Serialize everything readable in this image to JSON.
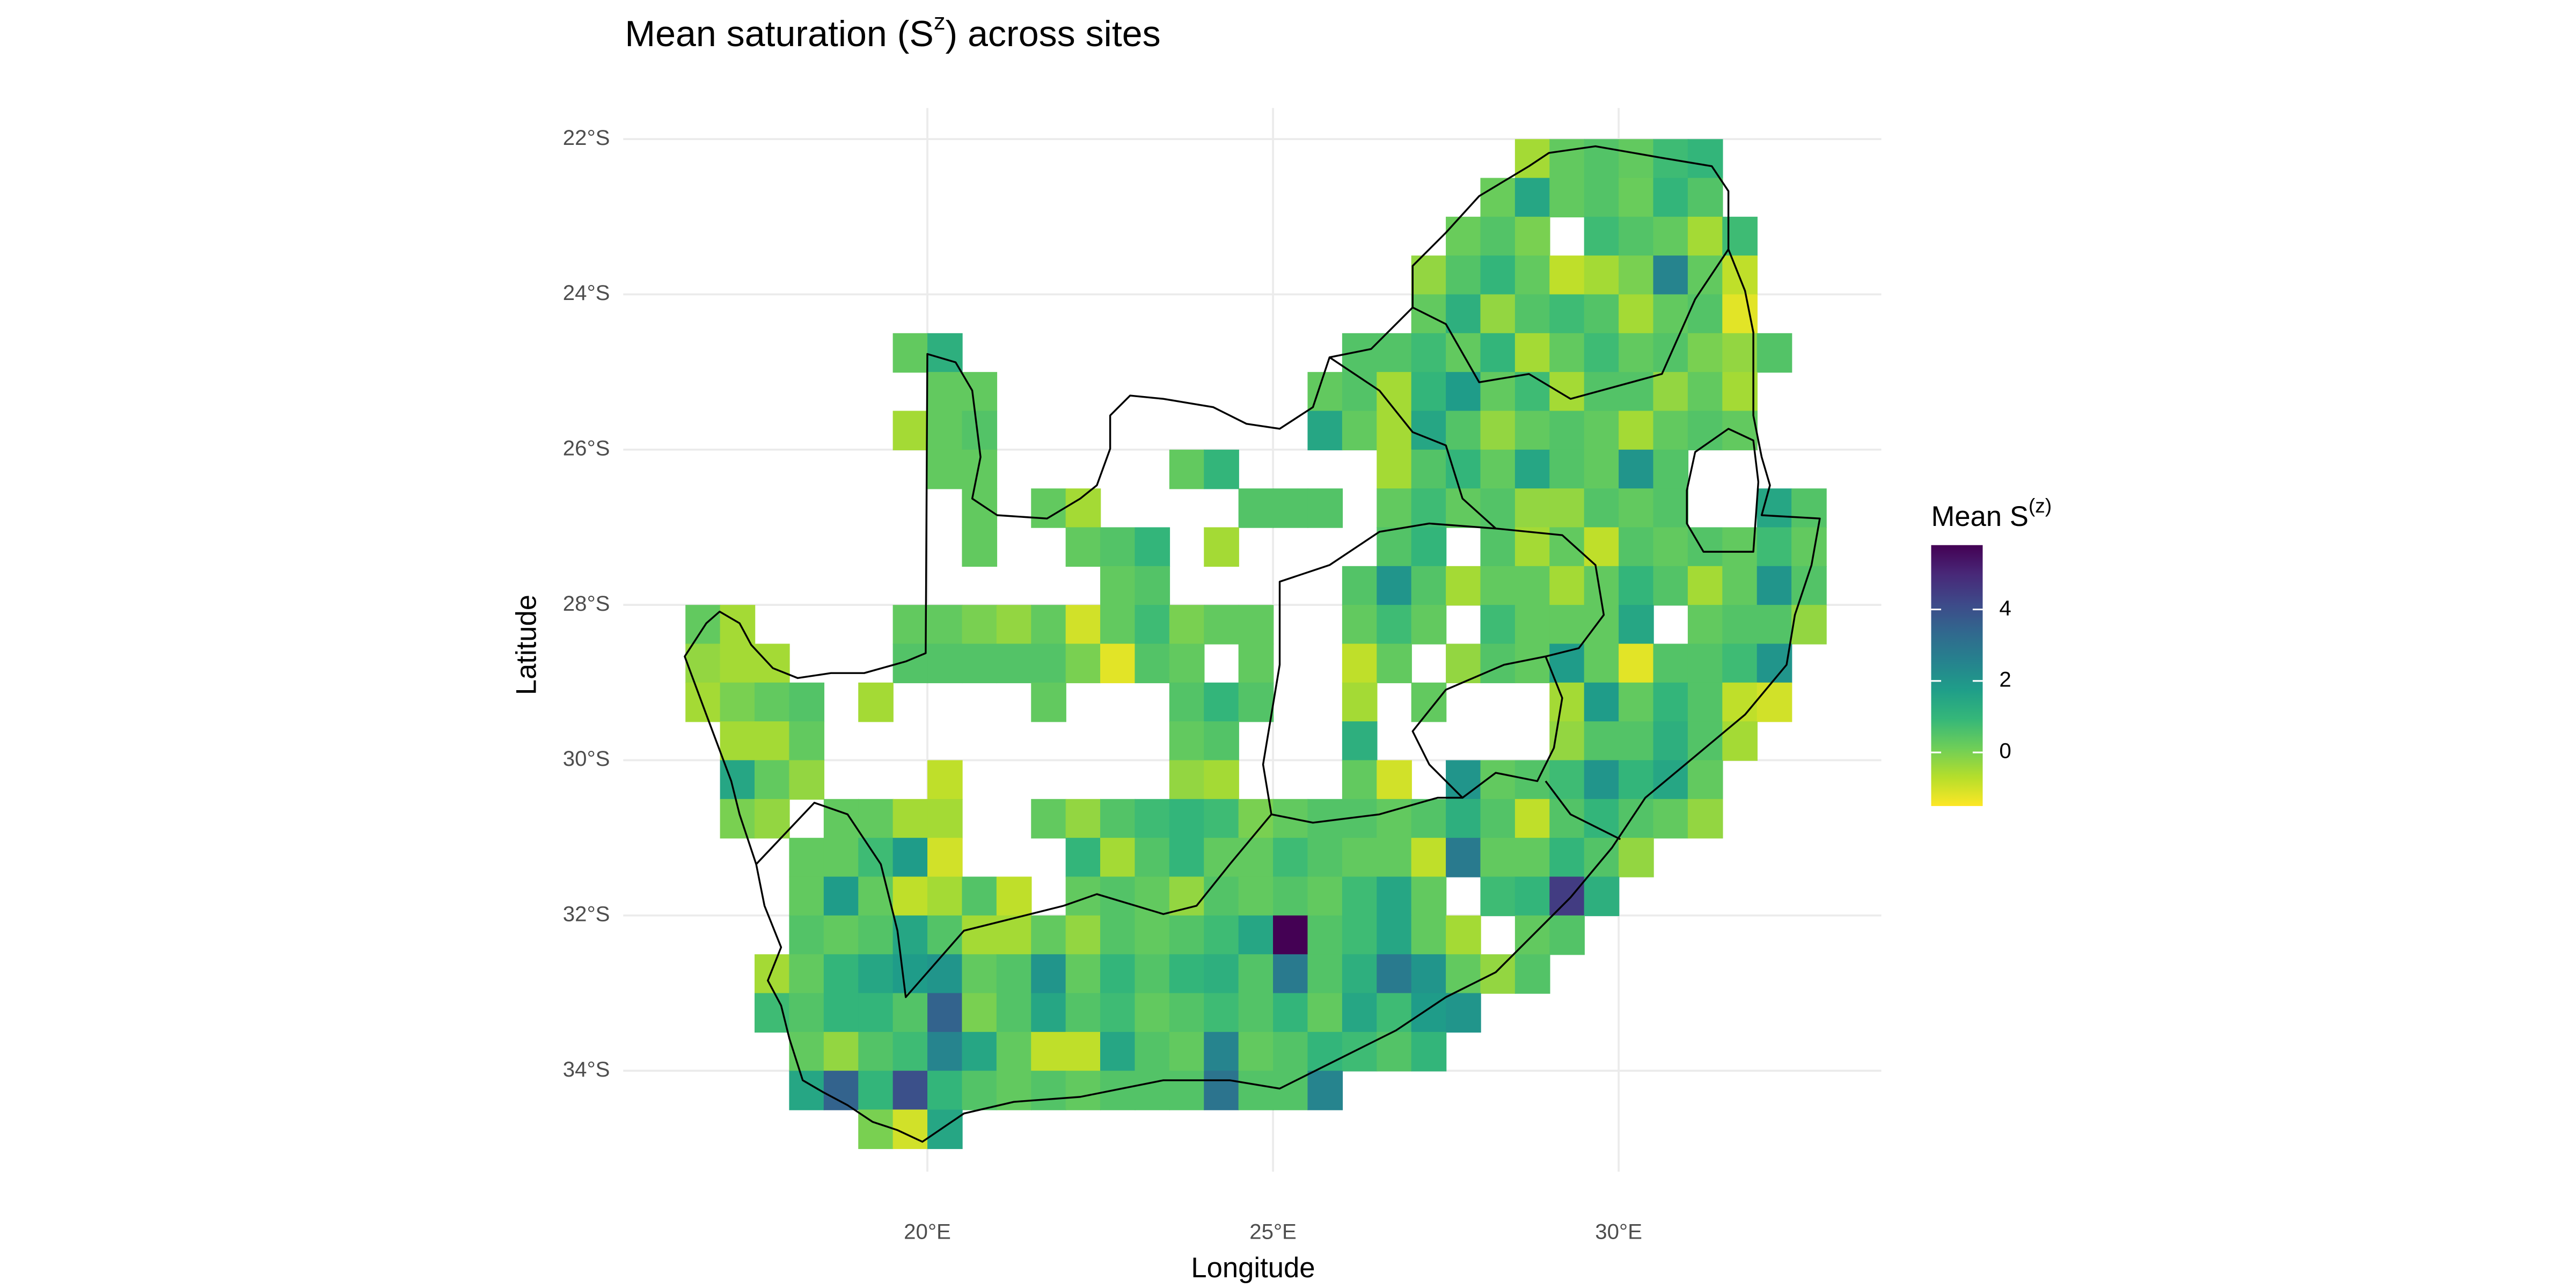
{
  "chart_data": {
    "type": "heatmap",
    "title": [
      "Mean saturation (S",
      "z",
      ") across sites"
    ],
    "x_label": "Longitude",
    "y_label": "Latitude",
    "xlim": [
      15.6,
      33.8
    ],
    "ylim": [
      -35.3,
      -21.6
    ],
    "xticks": [
      {
        "value": 20,
        "label": "20°E"
      },
      {
        "value": 25,
        "label": "25°E"
      },
      {
        "value": 30,
        "label": "30°E"
      }
    ],
    "yticks": [
      {
        "value": -22,
        "label": "22°S"
      },
      {
        "value": -24,
        "label": "24°S"
      },
      {
        "value": -26,
        "label": "26°S"
      },
      {
        "value": -28,
        "label": "28°S"
      },
      {
        "value": -30,
        "label": "30°S"
      },
      {
        "value": -32,
        "label": "32°S"
      },
      {
        "value": -34,
        "label": "34°S"
      }
    ],
    "grid": true,
    "x": [
      16.75,
      17.25,
      17.75,
      18.25,
      18.75,
      19.25,
      19.75,
      20.25,
      20.75,
      21.25,
      21.75,
      22.25,
      22.75,
      23.25,
      23.75,
      24.25,
      24.75,
      25.25,
      25.75,
      26.25,
      26.75,
      27.25,
      27.75,
      28.25,
      28.75,
      29.25,
      29.75,
      30.25,
      30.75,
      31.25,
      31.75,
      32.25,
      32.75
    ],
    "y": [
      -22.25,
      -22.75,
      -23.25,
      -23.75,
      -24.25,
      -24.75,
      -25.25,
      -25.75,
      -26.25,
      -26.75,
      -27.25,
      -27.75,
      -28.25,
      -28.75,
      -29.25,
      -29.75,
      -30.25,
      -30.75,
      -31.25,
      -31.75,
      -32.25,
      -32.75,
      -33.25,
      -33.75,
      -34.25,
      -34.75
    ],
    "values": [
      [
        null,
        null,
        null,
        null,
        null,
        null,
        null,
        null,
        null,
        null,
        null,
        null,
        null,
        null,
        null,
        null,
        null,
        null,
        null,
        null,
        null,
        null,
        null,
        null,
        -0.5,
        0.3,
        0.5,
        0.3,
        0.8,
        1.0,
        null,
        null,
        null
      ],
      [
        null,
        null,
        null,
        null,
        null,
        null,
        null,
        null,
        null,
        null,
        null,
        null,
        null,
        null,
        null,
        null,
        null,
        null,
        null,
        null,
        null,
        null,
        null,
        0.2,
        1.5,
        0.3,
        0.5,
        0.2,
        1.0,
        0.5,
        null,
        null,
        null
      ],
      [
        null,
        null,
        null,
        null,
        null,
        null,
        null,
        null,
        null,
        null,
        null,
        null,
        null,
        null,
        null,
        null,
        null,
        null,
        null,
        null,
        null,
        null,
        0.2,
        0.5,
        0.0,
        null,
        0.8,
        0.5,
        0.3,
        -0.5,
        0.8,
        null,
        null
      ],
      [
        null,
        null,
        null,
        null,
        null,
        null,
        null,
        null,
        null,
        null,
        null,
        null,
        null,
        null,
        null,
        null,
        null,
        null,
        null,
        null,
        null,
        -0.3,
        0.5,
        1.0,
        0.3,
        -0.8,
        -0.5,
        0.0,
        2.5,
        0.3,
        -0.8,
        null,
        null
      ],
      [
        null,
        null,
        null,
        null,
        null,
        null,
        null,
        null,
        null,
        null,
        null,
        null,
        null,
        null,
        null,
        null,
        null,
        null,
        null,
        null,
        null,
        0.3,
        1.2,
        -0.3,
        0.5,
        0.8,
        0.5,
        -0.5,
        0.3,
        0.5,
        -1.2,
        null,
        null
      ],
      [
        null,
        null,
        null,
        null,
        null,
        null,
        0.3,
        1.2,
        null,
        null,
        null,
        null,
        null,
        null,
        null,
        null,
        null,
        null,
        null,
        0.5,
        0.5,
        0.8,
        0.3,
        1.0,
        -0.5,
        0.3,
        0.8,
        0.3,
        0.5,
        0.0,
        -0.3,
        0.5,
        null
      ],
      [
        null,
        null,
        null,
        null,
        null,
        null,
        null,
        0.3,
        0.3,
        null,
        null,
        null,
        null,
        null,
        null,
        null,
        null,
        null,
        0.3,
        0.5,
        -0.5,
        1.0,
        1.8,
        0.3,
        0.8,
        -0.5,
        0.5,
        0.5,
        -0.3,
        0.3,
        -0.5,
        null,
        null
      ],
      [
        null,
        null,
        null,
        null,
        null,
        null,
        -0.5,
        0.3,
        0.5,
        null,
        null,
        null,
        null,
        null,
        null,
        null,
        null,
        null,
        1.5,
        0.3,
        -0.5,
        1.5,
        0.5,
        -0.3,
        0.3,
        0.5,
        0.3,
        -0.5,
        0.3,
        0.5,
        0.3,
        null,
        null
      ],
      [
        null,
        null,
        null,
        null,
        null,
        null,
        null,
        0.3,
        0.3,
        null,
        null,
        null,
        null,
        null,
        0.3,
        1.0,
        null,
        null,
        null,
        null,
        -0.5,
        0.5,
        1.0,
        0.3,
        1.5,
        0.5,
        0.3,
        2.0,
        0.5,
        null,
        null,
        null,
        null
      ],
      [
        null,
        null,
        null,
        null,
        null,
        null,
        null,
        null,
        0.3,
        null,
        0.3,
        -0.5,
        null,
        null,
        null,
        null,
        0.5,
        0.5,
        0.5,
        null,
        0.3,
        0.8,
        0.3,
        0.5,
        -0.3,
        -0.3,
        0.5,
        0.3,
        0.5,
        null,
        null,
        1.5,
        0.5
      ],
      [
        null,
        null,
        null,
        null,
        null,
        null,
        null,
        null,
        0.3,
        null,
        null,
        0.3,
        0.5,
        1.0,
        null,
        -0.5,
        null,
        null,
        null,
        null,
        0.5,
        1.0,
        null,
        0.5,
        -0.5,
        0.3,
        -0.8,
        0.5,
        0.3,
        0.5,
        0.3,
        0.8,
        0.3
      ],
      [
        null,
        null,
        null,
        null,
        null,
        null,
        null,
        null,
        null,
        null,
        null,
        null,
        0.3,
        0.5,
        null,
        null,
        null,
        null,
        null,
        0.5,
        2.0,
        0.5,
        -0.5,
        0.3,
        0.3,
        -0.5,
        0.3,
        1.0,
        0.5,
        -0.5,
        0.3,
        2.0,
        0.5
      ],
      [
        0.3,
        -0.5,
        null,
        null,
        null,
        null,
        0.3,
        0.3,
        0.0,
        -0.3,
        0.3,
        -1.0,
        0.3,
        0.8,
        0.0,
        0.3,
        0.3,
        null,
        null,
        0.3,
        0.8,
        0.3,
        null,
        0.8,
        0.3,
        0.3,
        0.3,
        1.5,
        null,
        0.3,
        0.5,
        0.5,
        -0.3
      ],
      [
        -0.3,
        -0.5,
        -0.5,
        null,
        null,
        null,
        0.5,
        0.5,
        0.5,
        0.5,
        0.5,
        0.0,
        -1.2,
        0.5,
        0.3,
        null,
        0.3,
        null,
        null,
        -0.8,
        0.3,
        null,
        -0.3,
        0.5,
        0.3,
        1.8,
        0.3,
        -1.2,
        0.5,
        0.5,
        0.8,
        2.0,
        null
      ],
      [
        -0.5,
        0.0,
        0.3,
        0.5,
        null,
        -0.5,
        null,
        null,
        null,
        null,
        0.3,
        null,
        null,
        null,
        0.5,
        1.0,
        0.5,
        null,
        null,
        -0.5,
        null,
        0.3,
        null,
        null,
        null,
        -0.5,
        1.8,
        0.3,
        1.0,
        0.5,
        -0.8,
        -1.0,
        null
      ],
      [
        null,
        -0.5,
        -0.5,
        0.3,
        null,
        null,
        null,
        null,
        null,
        null,
        null,
        null,
        null,
        null,
        0.3,
        0.5,
        null,
        null,
        null,
        1.2,
        null,
        null,
        null,
        null,
        null,
        -0.3,
        0.5,
        0.5,
        1.2,
        0.5,
        -0.5,
        null,
        null
      ],
      [
        null,
        1.5,
        0.3,
        -0.3,
        null,
        null,
        null,
        -0.8,
        null,
        null,
        null,
        null,
        null,
        null,
        -0.3,
        -0.5,
        null,
        null,
        null,
        0.3,
        -1.0,
        null,
        2.0,
        0.3,
        0.5,
        0.8,
        2.0,
        1.0,
        1.5,
        0.3,
        null,
        null,
        null
      ],
      [
        null,
        0.0,
        -0.3,
        null,
        0.3,
        0.3,
        -0.5,
        -0.5,
        null,
        null,
        0.3,
        -0.3,
        0.5,
        0.8,
        1.0,
        0.8,
        0.0,
        0.3,
        0.5,
        0.5,
        0.3,
        0.5,
        1.2,
        0.5,
        -0.8,
        0.5,
        1.0,
        0.5,
        0.3,
        -0.3,
        null,
        null,
        null
      ],
      [
        null,
        null,
        null,
        0.3,
        0.3,
        0.8,
        1.8,
        -1.0,
        null,
        null,
        null,
        1.0,
        -0.5,
        0.5,
        1.0,
        0.3,
        0.3,
        0.8,
        0.5,
        0.3,
        0.3,
        -0.8,
        2.8,
        0.3,
        0.3,
        1.0,
        0.5,
        -0.3,
        null,
        null,
        null,
        null,
        null
      ],
      [
        null,
        null,
        null,
        0.3,
        1.8,
        0.3,
        -0.8,
        -0.5,
        0.5,
        -0.8,
        null,
        0.3,
        0.5,
        0.3,
        -0.3,
        0.5,
        0.3,
        0.5,
        0.3,
        0.8,
        1.5,
        0.3,
        null,
        0.8,
        1.0,
        4.5,
        1.2,
        null,
        null,
        null,
        null,
        null,
        null
      ],
      [
        null,
        null,
        null,
        0.5,
        0.3,
        0.5,
        1.5,
        0.5,
        -0.5,
        -0.5,
        0.3,
        -0.3,
        0.5,
        0.3,
        0.5,
        0.8,
        1.5,
        5.8,
        0.5,
        0.8,
        1.5,
        0.3,
        -0.5,
        null,
        0.3,
        0.5,
        null,
        null,
        null,
        null,
        null,
        null,
        null
      ],
      [
        null,
        null,
        -0.5,
        0.3,
        1.0,
        1.5,
        1.8,
        2.0,
        0.3,
        0.5,
        2.0,
        0.3,
        1.0,
        0.5,
        1.0,
        1.2,
        0.5,
        2.8,
        0.5,
        1.2,
        2.8,
        2.0,
        0.3,
        -0.3,
        0.5,
        null,
        null,
        null,
        null,
        null,
        null,
        null,
        null
      ],
      [
        null,
        null,
        0.8,
        0.5,
        1.0,
        1.0,
        0.5,
        3.5,
        0.0,
        0.5,
        1.5,
        0.5,
        0.8,
        0.3,
        0.5,
        0.8,
        0.5,
        1.0,
        0.3,
        1.5,
        0.8,
        1.8,
        2.0,
        null,
        null,
        null,
        null,
        null,
        null,
        null,
        null,
        null,
        null
      ],
      [
        null,
        null,
        null,
        0.3,
        -0.3,
        0.5,
        0.8,
        2.5,
        1.5,
        0.3,
        -0.8,
        -0.8,
        1.5,
        0.5,
        0.3,
        2.5,
        0.3,
        0.5,
        1.0,
        0.8,
        0.5,
        1.0,
        null,
        null,
        null,
        null,
        null,
        null,
        null,
        null,
        null,
        null,
        null
      ],
      [
        null,
        null,
        null,
        1.5,
        3.5,
        1.0,
        4.0,
        1.0,
        0.5,
        0.3,
        0.5,
        0.3,
        0.5,
        0.5,
        0.5,
        3.0,
        0.5,
        0.5,
        2.5,
        null,
        null,
        null,
        null,
        null,
        null,
        null,
        null,
        null,
        null,
        null,
        null,
        null,
        null
      ],
      [
        null,
        null,
        null,
        null,
        null,
        0.0,
        -1.0,
        1.5,
        null,
        null,
        null,
        null,
        null,
        null,
        null,
        null,
        null,
        null,
        null,
        null,
        null,
        null,
        null,
        null,
        null,
        null,
        null,
        null,
        null,
        null,
        null,
        null,
        null
      ]
    ],
    "colorbar": {
      "title": [
        "Mean S",
        "(z)"
      ],
      "range": [
        -1.5,
        5.8
      ],
      "ticks": [
        0,
        2,
        4
      ],
      "colors": [
        "#fde725",
        "#b5de2b",
        "#6ece58",
        "#35b779",
        "#1f9e89",
        "#26828e",
        "#31688e",
        "#3e4989",
        "#482878",
        "#440154"
      ]
    }
  }
}
